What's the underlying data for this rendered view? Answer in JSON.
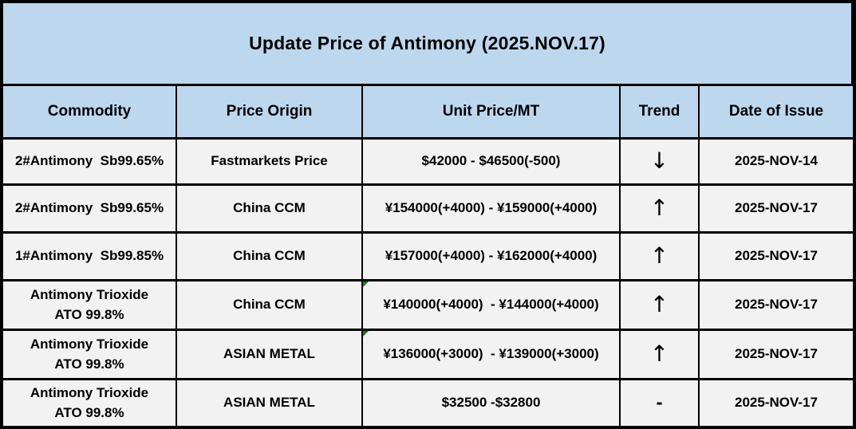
{
  "title": "Update Price of Antimony (2025.NOV.17)",
  "columns": {
    "commodity": "Commodity",
    "origin": "Price Origin",
    "price": "Unit Price/MT",
    "trend": "Trend",
    "date": "Date of Issue"
  },
  "rows": [
    {
      "commodity": "2#Antimony  Sb99.65%",
      "origin": "Fastmarkets Price",
      "price": "$42000 - $46500(-500)",
      "trend": "↓",
      "trend_meaning": "down",
      "date": "2025-NOV-14",
      "marker": false
    },
    {
      "commodity": "2#Antimony  Sb99.65%",
      "origin": "China CCM",
      "price": "¥154000(+4000) - ¥159000(+4000)",
      "trend": "↑",
      "trend_meaning": "up",
      "date": "2025-NOV-17",
      "marker": false
    },
    {
      "commodity": "1#Antimony  Sb99.85%",
      "origin": "China CCM",
      "price": "¥157000(+4000) - ¥162000(+4000)",
      "trend": "↑",
      "trend_meaning": "up",
      "date": "2025-NOV-17",
      "marker": false
    },
    {
      "commodity": "Antimony Trioxide\nATO 99.8%",
      "origin": "China CCM",
      "price": "¥140000(+4000)  - ¥144000(+4000)",
      "trend": "↑",
      "trend_meaning": "up",
      "date": "2025-NOV-17",
      "marker": true
    },
    {
      "commodity": "Antimony Trioxide\nATO 99.8%",
      "origin": "ASIAN METAL",
      "price": "¥136000(+3000)  - ¥139000(+3000)",
      "trend": "↑",
      "trend_meaning": "up",
      "date": "2025-NOV-17",
      "marker": true
    },
    {
      "commodity": "Antimony Trioxide\nATO 99.8%",
      "origin": "ASIAN METAL",
      "price": "$32500 -$32800",
      "trend": "-",
      "trend_meaning": "flat",
      "date": "2025-NOV-17",
      "marker": false
    }
  ],
  "colors": {
    "header_bg": "#bdd7ee",
    "row_bg": "#f2f2f2",
    "border": "#000000",
    "note_marker_green": "#107c10",
    "text": "#000000"
  }
}
